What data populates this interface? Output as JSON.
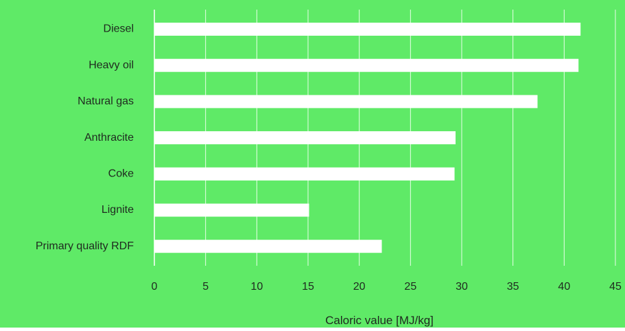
{
  "colors": {
    "background": "#5FEA67",
    "bar": "#FFFFFF",
    "grid": "#E9FFE9",
    "text": "#1F2A1F"
  },
  "chart_data": {
    "type": "bar",
    "orientation": "horizontal",
    "categories": [
      "Diesel",
      "Heavy oil",
      "Natural gas",
      "Anthracite",
      "Coke",
      "Lignite",
      "Primary quality RDF"
    ],
    "values": [
      41.6,
      41.4,
      37.4,
      29.4,
      29.3,
      15.1,
      22.2
    ],
    "xlabel": "Caloric value [MJ/kg]",
    "ylabel": "",
    "title": "",
    "xlim": [
      0,
      45
    ],
    "xticks": [
      "0",
      "5",
      "10",
      "15",
      "20",
      "25",
      "30",
      "35",
      "40",
      "45"
    ],
    "grid": "vertical",
    "legend": "none"
  }
}
